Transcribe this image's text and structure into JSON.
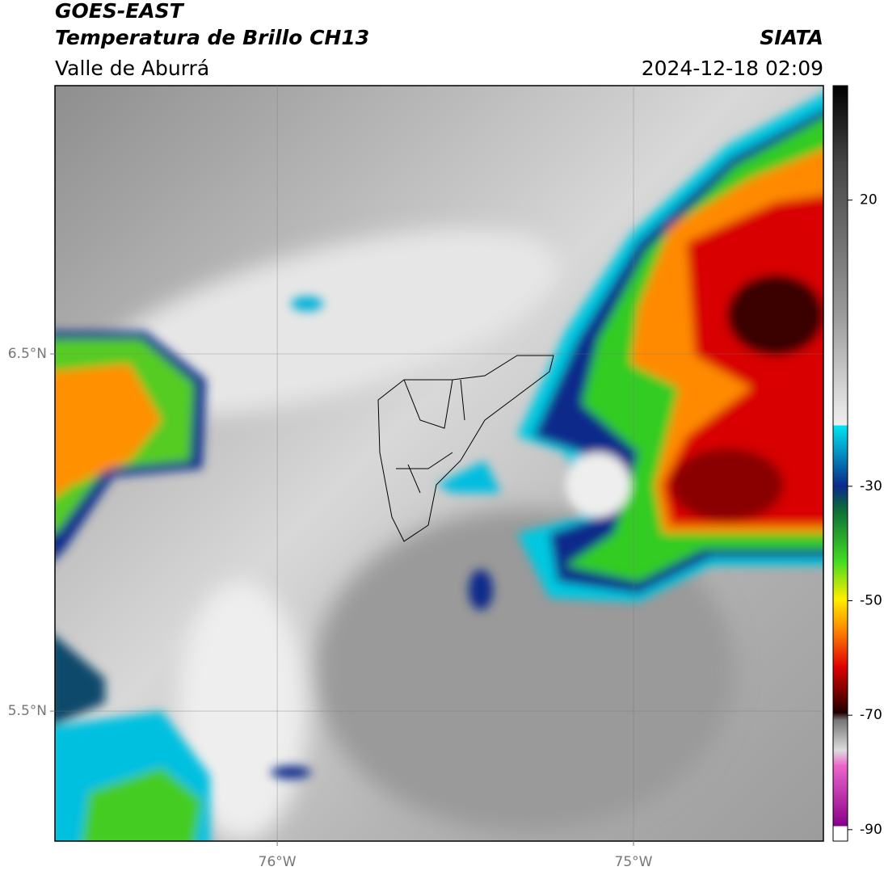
{
  "header": {
    "satellite": "GOES-EAST",
    "product": "Temperatura de Brillo CH13",
    "region": "Valle de Aburrá",
    "agency": "SIATA",
    "timestamp": "2024-12-18 02:09"
  },
  "map": {
    "xlim": [
      -76.624,
      -74.467
    ],
    "ylim": [
      5.136,
      7.251
    ],
    "xticks": [
      {
        "value": -76,
        "label": "76°W"
      },
      {
        "value": -75,
        "label": "75°W"
      }
    ],
    "yticks": [
      {
        "value": 6.5,
        "label": "6.5°N"
      },
      {
        "value": 5.5,
        "label": "5.5°N"
      }
    ],
    "grid": true
  },
  "colorbar": {
    "lim": [
      -92,
      40
    ],
    "ticks": [
      20,
      -30,
      -50,
      -70,
      -90
    ]
  }
}
